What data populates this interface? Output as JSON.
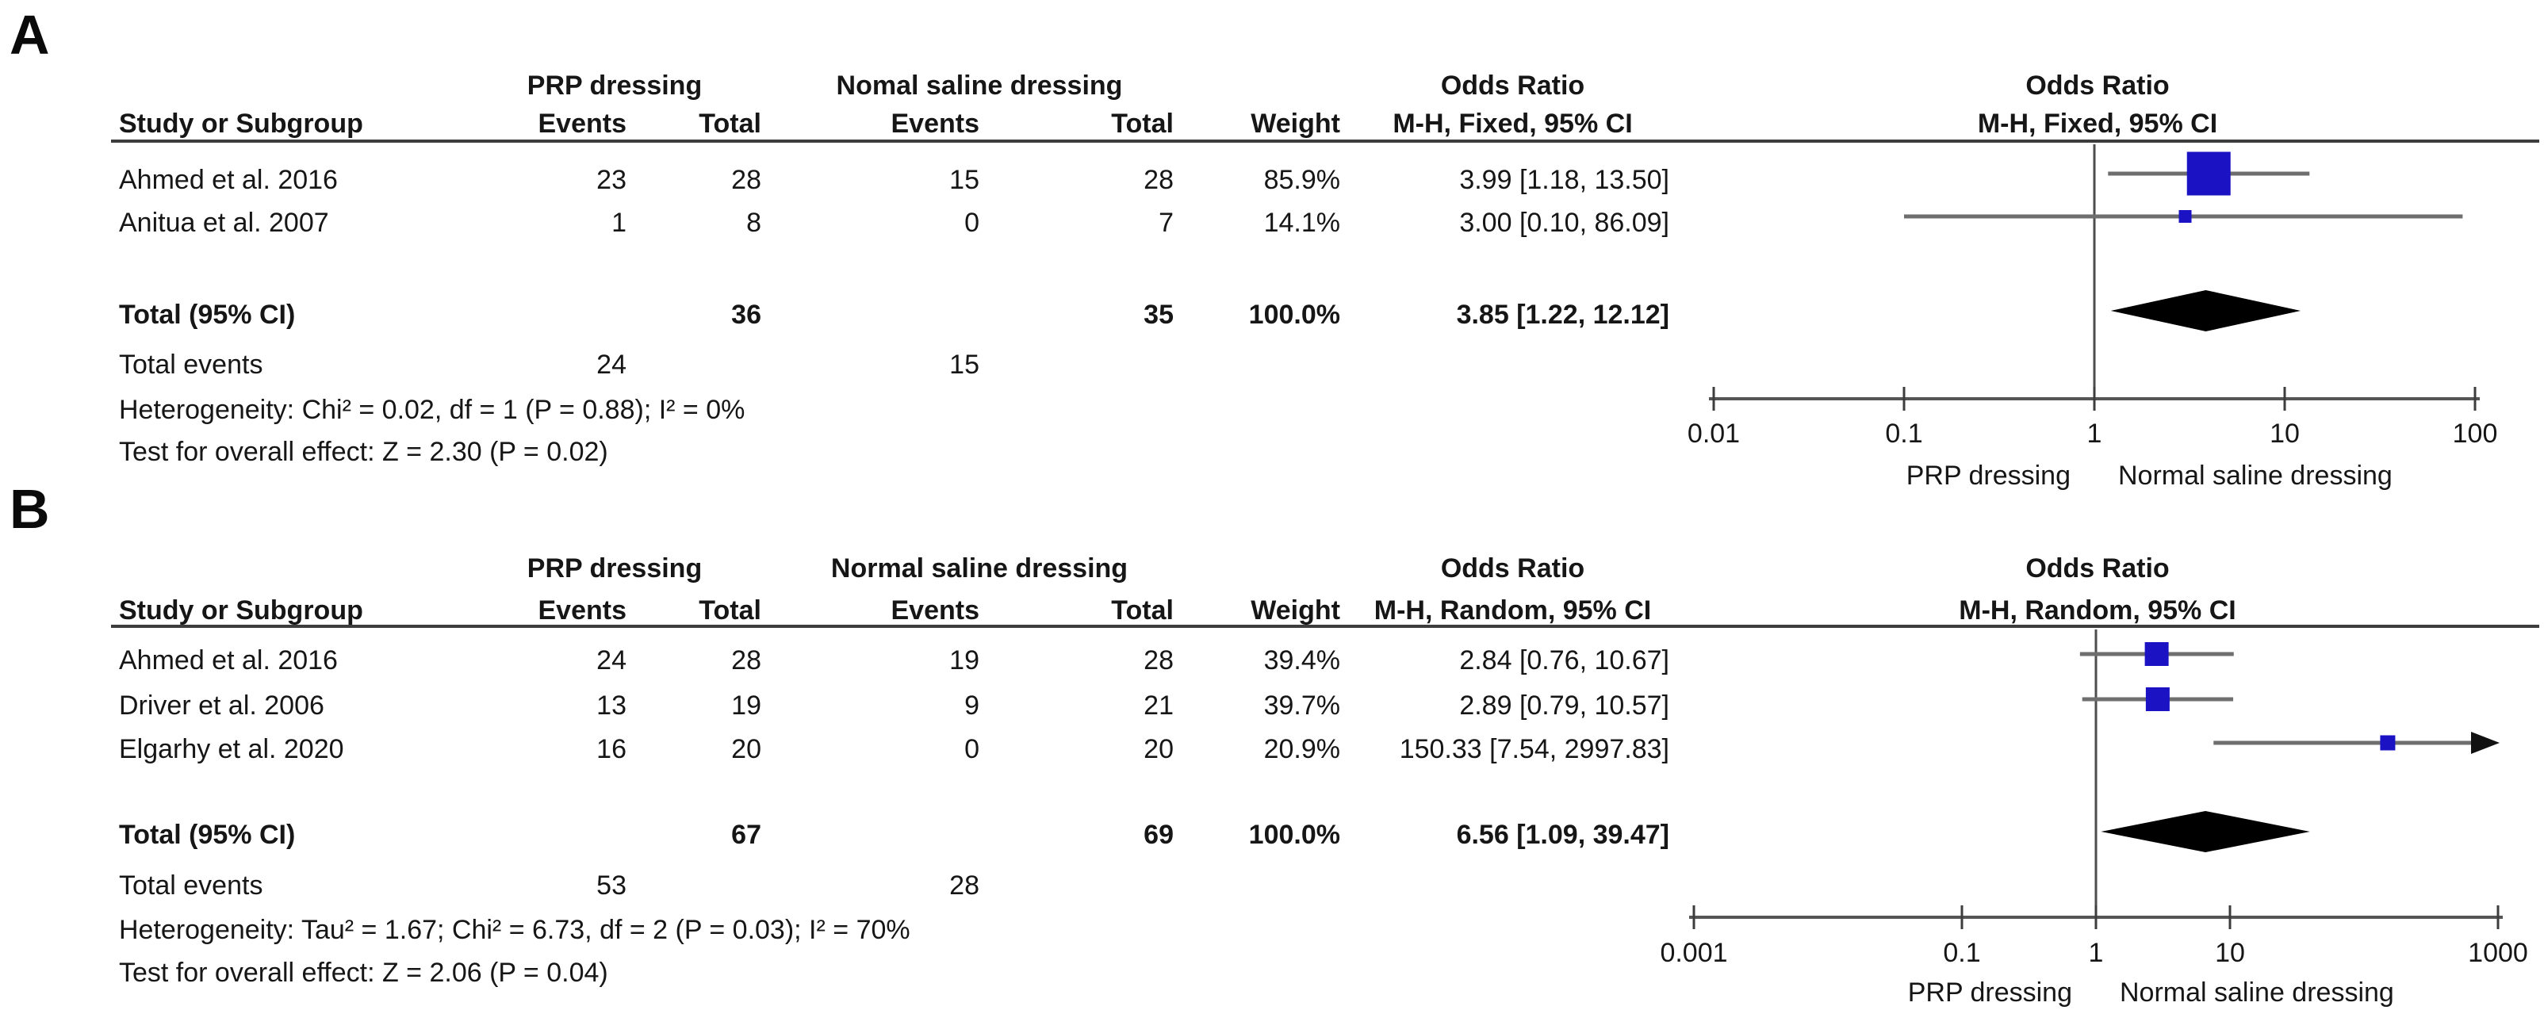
{
  "chart_data": [
    {
      "type": "forest",
      "panel_label": "A",
      "model": "Fixed",
      "group1_header": "PRP dressing",
      "group2_header": "Nomal saline dressing",
      "effect_title": "Odds Ratio",
      "method_header": "M-H, Fixed, 95% CI",
      "col_headers": {
        "study": "Study or Subgroup",
        "events": "Events",
        "total": "Total",
        "weight": "Weight"
      },
      "studies": [
        {
          "study": "Ahmed et al. 2016",
          "events1": "23",
          "total1": "28",
          "events2": "15",
          "total2": "28",
          "weight": "85.9%",
          "weight_pct": 85.9,
          "or_text": "3.99 [1.18, 13.50]",
          "or": 3.99,
          "ci_low": 1.18,
          "ci_high": 13.5
        },
        {
          "study": "Anitua et al. 2007",
          "events1": "1",
          "total1": "8",
          "events2": "0",
          "total2": "7",
          "weight": "14.1%",
          "weight_pct": 14.1,
          "or_text": "3.00 [0.10, 86.09]",
          "or": 3.0,
          "ci_low": 0.1,
          "ci_high": 86.09
        }
      ],
      "total_row": {
        "label": "Total (95% CI)",
        "total1": "36",
        "total2": "35",
        "weight": "100.0%",
        "or_text": "3.85 [1.22, 12.12]",
        "or": 3.85,
        "ci_low": 1.22,
        "ci_high": 12.12
      },
      "total_events": {
        "label": "Total events",
        "events1": "24",
        "events2": "15"
      },
      "heterogeneity_text": "Heterogeneity: Chi² = 0.02, df = 1 (P = 0.88); I² = 0%",
      "overall_effect_text": "Test for overall effect: Z = 2.30 (P = 0.02)",
      "x_axis": {
        "scale": "log",
        "min": 0.01,
        "max": 100,
        "ticks": [
          0.01,
          0.1,
          1,
          10,
          100
        ],
        "tick_labels": [
          "0.01",
          "0.1",
          "1",
          "10",
          "100"
        ]
      },
      "axis_label_left": "PRP dressing",
      "axis_label_right": "Normal saline dressing",
      "marker_color": "#1B12C4",
      "ci_color": "#6e6e6e",
      "diamond_color": "#000000"
    },
    {
      "type": "forest",
      "panel_label": "B",
      "model": "Random",
      "group1_header": "PRP dressing",
      "group2_header": "Normal saline dressing",
      "effect_title": "Odds Ratio",
      "method_header": "M-H, Random, 95% CI",
      "col_headers": {
        "study": "Study or Subgroup",
        "events": "Events",
        "total": "Total",
        "weight": "Weight"
      },
      "studies": [
        {
          "study": "Ahmed et al. 2016",
          "events1": "24",
          "total1": "28",
          "events2": "19",
          "total2": "28",
          "weight": "39.4%",
          "weight_pct": 39.4,
          "or_text": "2.84 [0.76, 10.67]",
          "or": 2.84,
          "ci_low": 0.76,
          "ci_high": 10.67
        },
        {
          "study": "Driver et al. 2006",
          "events1": "13",
          "total1": "19",
          "events2": "9",
          "total2": "21",
          "weight": "39.7%",
          "weight_pct": 39.7,
          "or_text": "2.89 [0.79, 10.57]",
          "or": 2.89,
          "ci_low": 0.79,
          "ci_high": 10.57
        },
        {
          "study": "Elgarhy et al. 2020",
          "events1": "16",
          "total1": "20",
          "events2": "0",
          "total2": "20",
          "weight": "20.9%",
          "weight_pct": 20.9,
          "or_text": "150.33 [7.54, 2997.83]",
          "or": 150.33,
          "ci_low": 7.54,
          "ci_high": 2997.83
        }
      ],
      "total_row": {
        "label": "Total (95% CI)",
        "total1": "67",
        "total2": "69",
        "weight": "100.0%",
        "or_text": "6.56 [1.09, 39.47]",
        "or": 6.56,
        "ci_low": 1.09,
        "ci_high": 39.47
      },
      "total_events": {
        "label": "Total events",
        "events1": "53",
        "events2": "28"
      },
      "heterogeneity_text": "Heterogeneity: Tau² = 1.67; Chi² = 6.73, df = 2 (P = 0.03); I² = 70%",
      "overall_effect_text": "Test for overall effect: Z = 2.06 (P = 0.04)",
      "x_axis": {
        "scale": "log",
        "min": 0.001,
        "max": 1000,
        "ticks": [
          0.001,
          0.1,
          1,
          10,
          1000
        ],
        "tick_labels": [
          "0.001",
          "0.1",
          "1",
          "10",
          "1000"
        ]
      },
      "axis_label_left": "PRP dressing",
      "axis_label_right": "Normal saline dressing",
      "marker_color": "#1B12C4",
      "ci_color": "#6e6e6e",
      "diamond_color": "#000000"
    }
  ]
}
